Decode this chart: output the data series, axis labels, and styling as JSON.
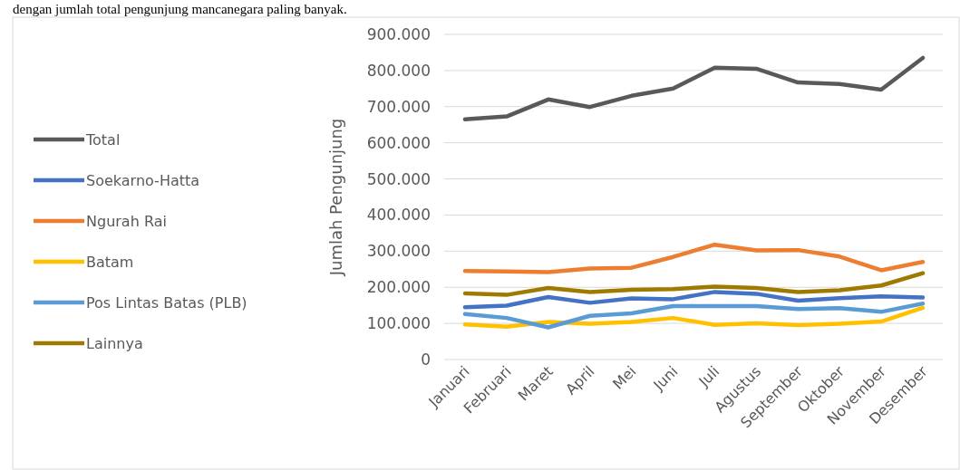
{
  "chart_data": {
    "type": "line",
    "ylabel": "Jumlah Pengunjung",
    "annotations": [
      "dengan jumlah total pengunjung mancanegara paling banyak."
    ],
    "categories": [
      "Januari",
      "Februari",
      "Maret",
      "April",
      "Mei",
      "Juni",
      "Juli",
      "Agustus",
      "September",
      "Oktober",
      "November",
      "Desember"
    ],
    "series": [
      {
        "name": "Total",
        "color": "#595959",
        "values": [
          665000,
          673000,
          720000,
          699000,
          730000,
          750000,
          808000,
          805000,
          767000,
          763000,
          747000,
          835000
        ]
      },
      {
        "name": "Soekarno-Hatta",
        "color": "#4472c4",
        "values": [
          145000,
          149000,
          173000,
          157000,
          169000,
          167000,
          187000,
          182000,
          163000,
          170000,
          175000,
          172000
        ]
      },
      {
        "name": "Ngurah Rai",
        "color": "#ed7d31",
        "values": [
          245000,
          244000,
          242000,
          252000,
          254000,
          284000,
          318000,
          302000,
          303000,
          285000,
          247000,
          270000
        ]
      },
      {
        "name": "Batam",
        "color": "#ffc000",
        "values": [
          97000,
          91000,
          104000,
          99000,
          104000,
          115000,
          96000,
          100000,
          95000,
          99000,
          105000,
          143000
        ]
      },
      {
        "name": "Pos Lintas Batas (PLB)",
        "color": "#5b9bd5",
        "values": [
          126000,
          115000,
          89000,
          121000,
          128000,
          148000,
          148000,
          148000,
          140000,
          142000,
          132000,
          155000
        ]
      },
      {
        "name": "Lainnya",
        "color": "#9e7b00",
        "values": [
          183000,
          179000,
          198000,
          187000,
          193000,
          195000,
          202000,
          198000,
          187000,
          192000,
          205000,
          239000
        ]
      }
    ],
    "ylim": [
      0,
      900000
    ],
    "yticks": [
      {
        "value": 0,
        "label": "0"
      },
      {
        "value": 100000,
        "label": "100.000"
      },
      {
        "value": 200000,
        "label": "200.000"
      },
      {
        "value": 300000,
        "label": "300.000"
      },
      {
        "value": 400000,
        "label": "400.000"
      },
      {
        "value": 500000,
        "label": "500.000"
      },
      {
        "value": 600000,
        "label": "600.000"
      },
      {
        "value": 700000,
        "label": "700.000"
      },
      {
        "value": 800000,
        "label": "800.000"
      },
      {
        "value": 900000,
        "label": "900.000"
      }
    ],
    "grid": "y",
    "legend": "left",
    "line_style": "solid",
    "marker": "none"
  }
}
